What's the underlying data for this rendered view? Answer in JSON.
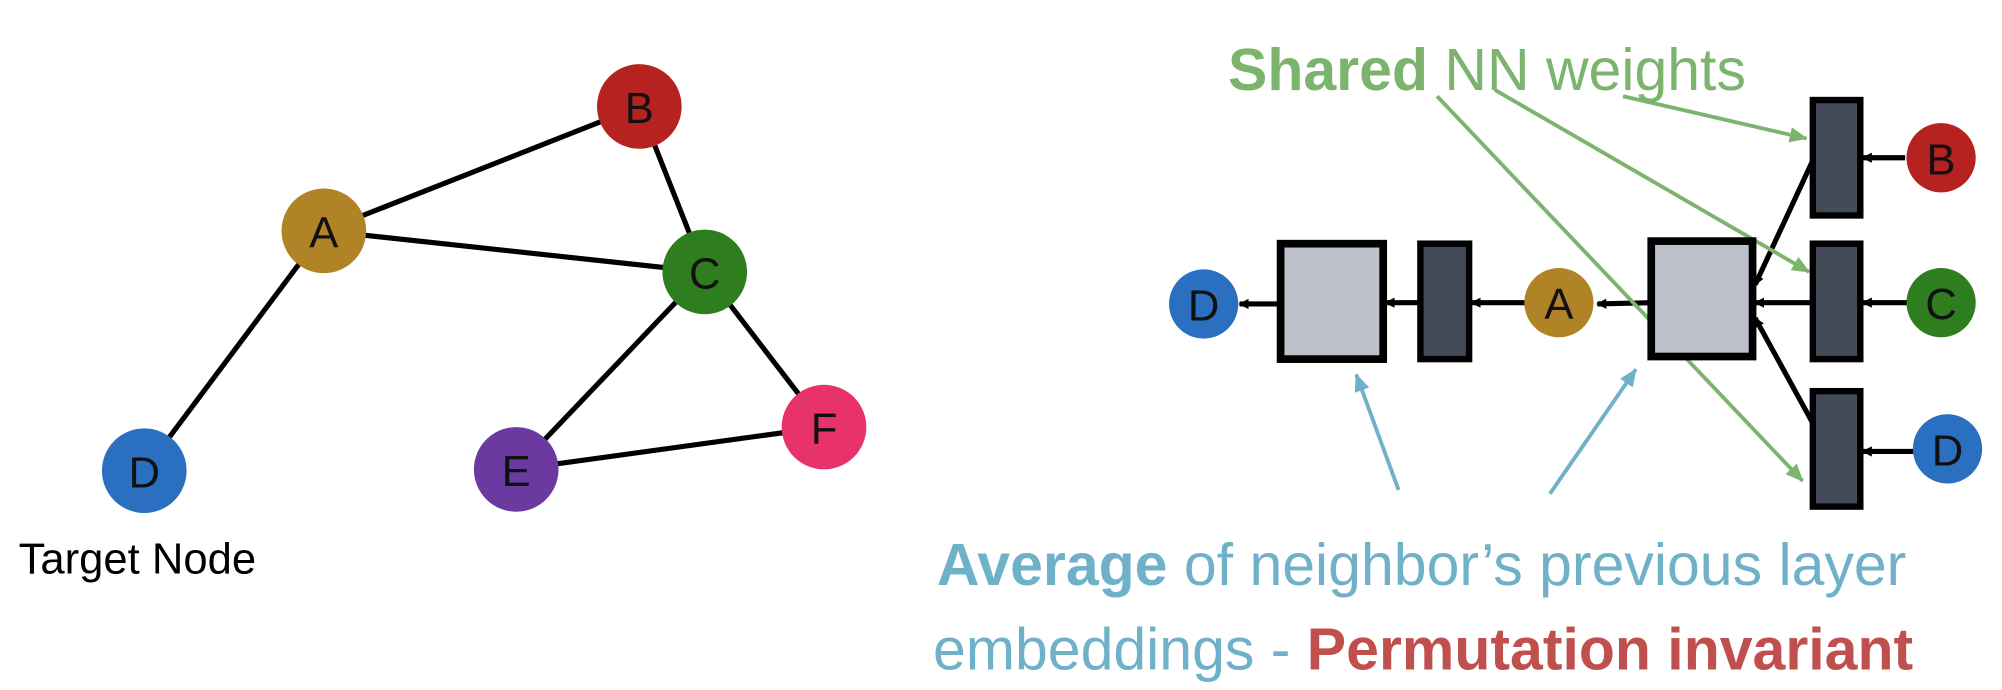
{
  "graph": {
    "nodes": [
      "A",
      "B",
      "C",
      "D",
      "E",
      "F"
    ],
    "caption": "Target Node"
  },
  "network": {
    "nodes": [
      "D",
      "A",
      "B",
      "C",
      "D"
    ],
    "shared_label": {
      "bold": "Shared",
      "rest": "NN weights"
    },
    "average_label": {
      "bold": "Average",
      "rest": "of neighbor’s previous layer",
      "line2": "embeddings - ",
      "emphasis": "Permutation invariant"
    }
  }
}
